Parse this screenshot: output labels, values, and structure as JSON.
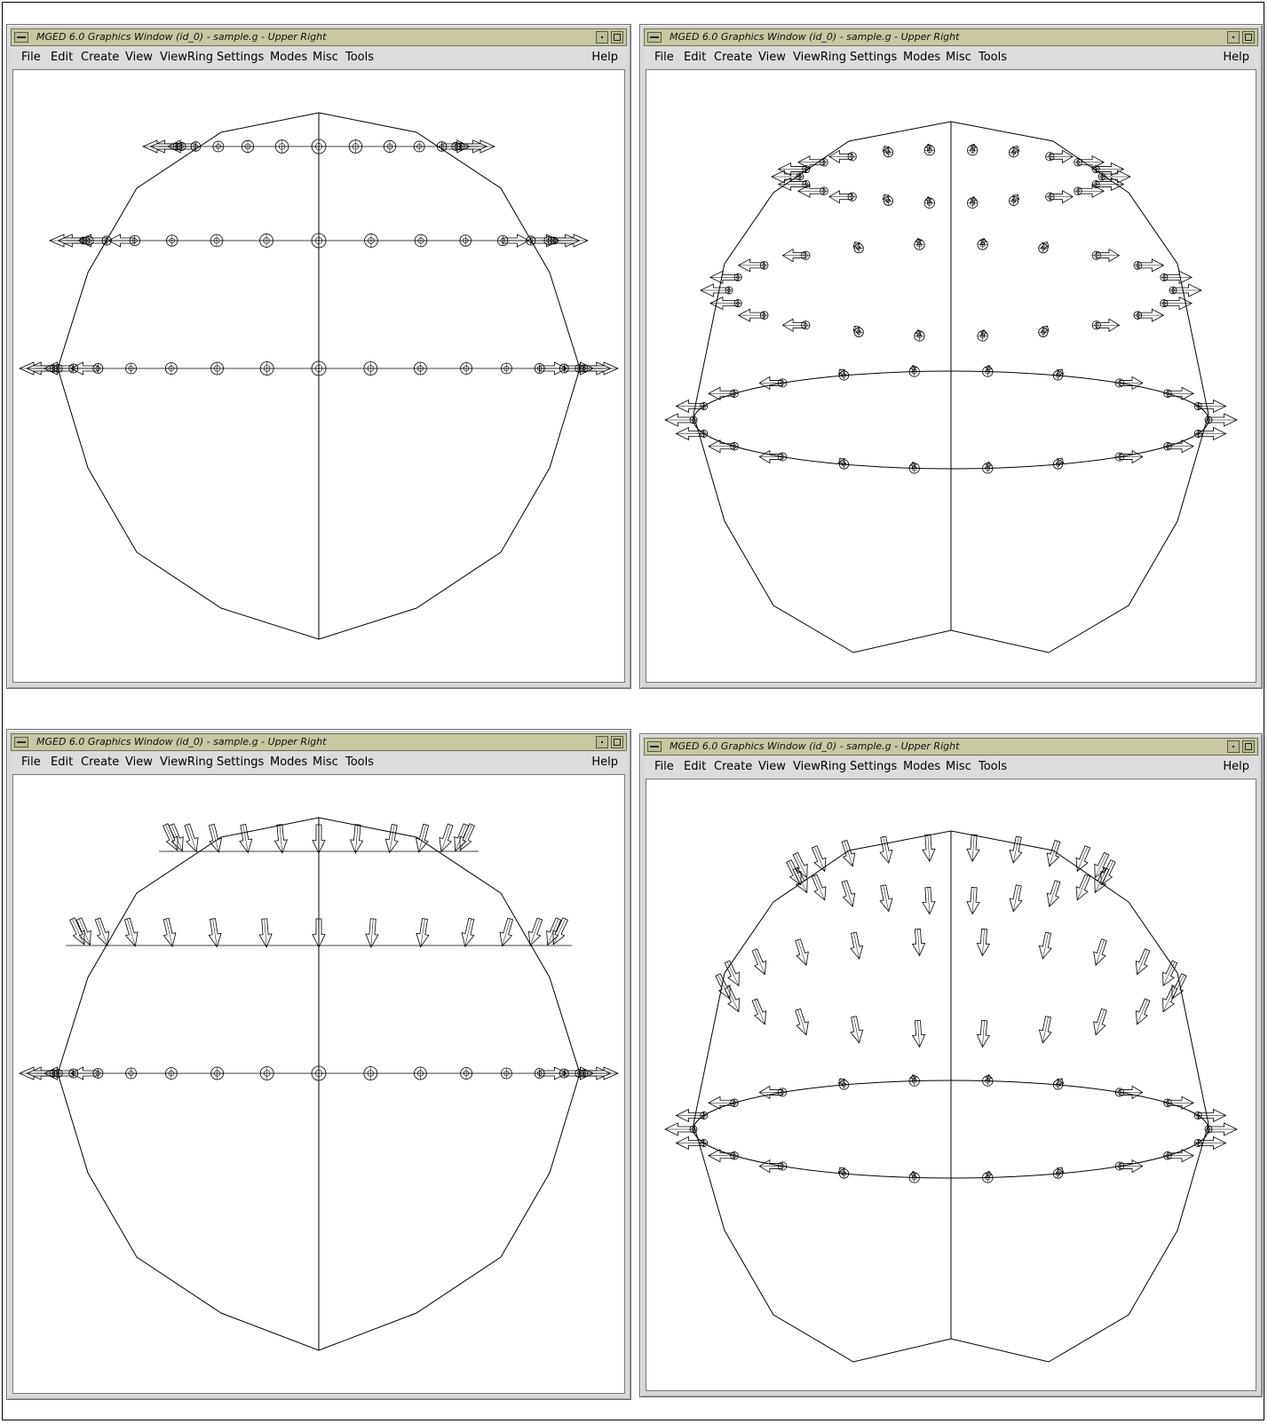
{
  "windows": [
    {
      "title": "MGED 6.0 Graphics Window (id_0) - sample.g - Upper Right",
      "view": "front",
      "vectors": "radial-ring"
    },
    {
      "title": "MGED 6.0 Graphics Window (id_0) - sample.g - Upper Right",
      "view": "oblique",
      "vectors": "radial-ring"
    },
    {
      "title": "MGED 6.0 Graphics Window (id_0) - sample.g - Upper Right",
      "view": "front",
      "vectors": "downward-front"
    },
    {
      "title": "MGED 6.0 Graphics Window (id_0) - sample.g - Upper Right",
      "view": "oblique",
      "vectors": "downward-oblique"
    }
  ],
  "menu": {
    "file": "File",
    "edit": "Edit",
    "create": "Create",
    "view": "View",
    "viewring": "ViewRing",
    "settings": "Settings",
    "modes": "Modes",
    "misc": "Misc",
    "tools": "Tools",
    "help": "Help"
  },
  "icons": {
    "system_menu": "system-menu-icon",
    "minimize": "minimize-icon",
    "maximize": "maximize-icon"
  },
  "colors": {
    "titlebar": "#c7c7a3",
    "menubar": "#dcdcdc",
    "wireframe": "#000000"
  }
}
